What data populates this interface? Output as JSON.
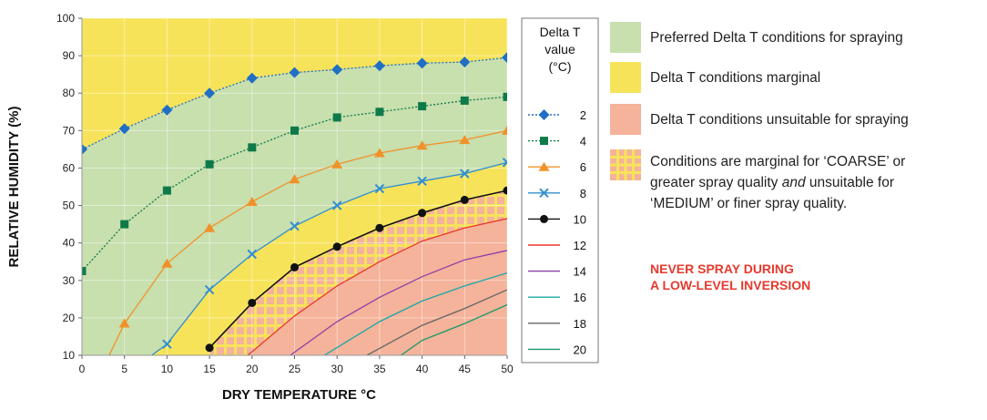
{
  "chart_data": {
    "type": "line",
    "xlabel": "DRY TEMPERATURE °C",
    "ylabel": "RELATIVE HUMIDITY (%)",
    "xlim": [
      0,
      50
    ],
    "ylim": [
      10,
      100
    ],
    "x_ticks": [
      0,
      5,
      10,
      15,
      20,
      25,
      30,
      35,
      40,
      45,
      50
    ],
    "y_ticks": [
      10,
      20,
      30,
      40,
      50,
      60,
      70,
      80,
      90,
      100
    ],
    "grid": true,
    "legend_title": [
      "Delta T",
      "value",
      "(°C)"
    ],
    "series": [
      {
        "name": "2",
        "color": "#1f6fc5",
        "marker": "diamond",
        "style": "dotted",
        "x": [
          0,
          5,
          10,
          15,
          20,
          25,
          30,
          35,
          40,
          45,
          50
        ],
        "y": [
          65,
          70.5,
          75.5,
          80,
          84,
          85.5,
          86.3,
          87.3,
          88,
          88.3,
          89.5
        ]
      },
      {
        "name": "4",
        "color": "#0e7a4a",
        "marker": "square",
        "style": "dotted",
        "x": [
          0,
          5,
          10,
          15,
          20,
          25,
          30,
          35,
          40,
          45,
          50
        ],
        "y": [
          32.5,
          45,
          54,
          61,
          65.5,
          70,
          73.5,
          75,
          76.5,
          78,
          79
        ]
      },
      {
        "name": "6",
        "color": "#f0922a",
        "marker": "triangle",
        "style": "solid",
        "x": [
          3.2,
          5,
          10,
          15,
          20,
          25,
          30,
          35,
          40,
          45,
          50
        ],
        "y": [
          10,
          18.5,
          34.5,
          44,
          51,
          57,
          61,
          64,
          66,
          67.5,
          70
        ]
      },
      {
        "name": "8",
        "color": "#2f8fd2",
        "marker": "x",
        "style": "solid",
        "x": [
          8.2,
          10,
          15,
          20,
          25,
          30,
          35,
          40,
          45,
          50
        ],
        "y": [
          10,
          13,
          27.5,
          37,
          44.5,
          50,
          54.5,
          56.5,
          58.5,
          61.5
        ]
      },
      {
        "name": "10",
        "color": "#111111",
        "marker": "circle",
        "style": "solid",
        "x": [
          15,
          20,
          25,
          30,
          35,
          40,
          45,
          50
        ],
        "y": [
          12,
          24,
          33.5,
          39,
          44,
          48,
          51.5,
          54
        ]
      },
      {
        "name": "12",
        "color": "#e8382c",
        "marker": "none",
        "style": "solid",
        "x": [
          19.5,
          25,
          30,
          35,
          40,
          45,
          50
        ],
        "y": [
          10,
          20.5,
          28.5,
          35,
          40.5,
          44,
          46.5
        ]
      },
      {
        "name": "14",
        "color": "#8e3fa8",
        "marker": "none",
        "style": "solid",
        "x": [
          24.5,
          30,
          35,
          40,
          45,
          50
        ],
        "y": [
          10,
          19,
          25.5,
          31,
          35.5,
          38
        ]
      },
      {
        "name": "16",
        "color": "#17a8a8",
        "marker": "none",
        "style": "solid",
        "x": [
          28.5,
          35,
          40,
          45,
          50
        ],
        "y": [
          10,
          19,
          24.5,
          28.5,
          32
        ]
      },
      {
        "name": "18",
        "color": "#666666",
        "marker": "none",
        "style": "solid",
        "x": [
          33.5,
          40,
          45,
          50
        ],
        "y": [
          10,
          18,
          22.5,
          27.5
        ]
      },
      {
        "name": "20",
        "color": "#1d9a6a",
        "marker": "none",
        "style": "solid",
        "x": [
          37.5,
          40,
          45,
          50
        ],
        "y": [
          10,
          14,
          18.5,
          23.5
        ]
      }
    ],
    "zones": [
      {
        "name": "marginal",
        "color": "#f7e35a"
      },
      {
        "name": "preferred",
        "color": "#c8dfae"
      },
      {
        "name": "unsuitable",
        "color": "#f4b39a"
      },
      {
        "name": "hatched",
        "color": "#f4b39a",
        "hatch_color": "#f7e35a"
      }
    ]
  },
  "key": {
    "items": [
      {
        "label": "Preferred Delta T conditions for spraying",
        "color": "#c8dfae"
      },
      {
        "label": "Delta T conditions marginal",
        "color": "#f7e35a"
      },
      {
        "label": "Delta T conditions unsuitable for spraying",
        "color": "#f4b39a"
      }
    ],
    "hatched": {
      "line1": "Conditions are marginal for ‘COARSE’ or",
      "line2_pre": "greater spray quality ",
      "line2_em": "and",
      "line2_post": " unsuitable for",
      "line3": "‘MEDIUM’ or finer spray quality."
    }
  },
  "warning": {
    "line1": "NEVER SPRAY DURING",
    "line2": "A LOW-LEVEL INVERSION"
  }
}
